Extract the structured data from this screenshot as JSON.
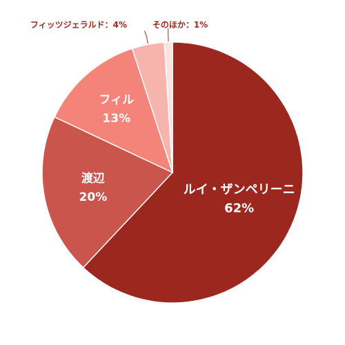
{
  "chart_data": {
    "type": "pie",
    "title": "",
    "slices": [
      {
        "label": "ルイ・ザンペリーニ",
        "value": 62,
        "display": "62%",
        "color": "#9b271f"
      },
      {
        "label": "渡辺",
        "value": 20,
        "display": "20%",
        "color": "#c9554d"
      },
      {
        "label": "フィル",
        "value": 13,
        "display": "13%",
        "color": "#f4847a"
      },
      {
        "label": "フィッツジェラルド",
        "value": 4,
        "display": "4%",
        "color": "#f7b3ad"
      },
      {
        "label": "そのほか",
        "value": 1,
        "display": "1%",
        "color": "#fde3e0"
      }
    ],
    "outside_labels": [
      {
        "slice_index": 3,
        "text": "フィッツジェラルド：4%"
      },
      {
        "slice_index": 4,
        "text": "そのほか：1%"
      }
    ]
  }
}
